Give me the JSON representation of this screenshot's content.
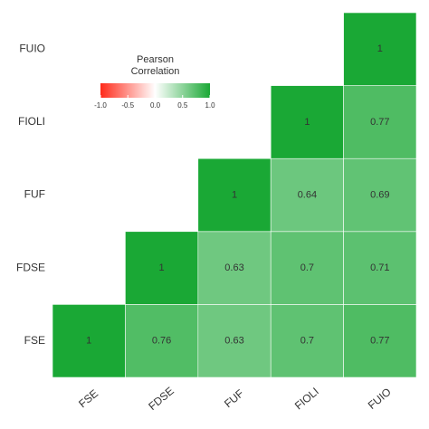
{
  "chart_data": {
    "type": "heatmap",
    "x_categories": [
      "FSE",
      "FDSE",
      "FUF",
      "FIOLI",
      "FUIO"
    ],
    "y_categories": [
      "FSE",
      "FDSE",
      "FUF",
      "FIOLI",
      "FUIO"
    ],
    "values": [
      [
        1,
        0.76,
        0.63,
        0.7,
        0.77
      ],
      [
        null,
        1,
        0.63,
        0.7,
        0.71
      ],
      [
        null,
        null,
        1,
        0.64,
        0.69
      ],
      [
        null,
        null,
        null,
        1,
        0.77
      ],
      [
        null,
        null,
        null,
        null,
        1
      ]
    ],
    "colorscale": {
      "low": "#ff2a1a",
      "mid": "#ffffff",
      "high": "#1aa835"
    },
    "legend_title": [
      "Pearson",
      "Correlation"
    ],
    "legend_lim": [
      -1,
      1
    ],
    "legend_ticks": [
      {
        "value": -1,
        "label": "-1.0"
      },
      {
        "value": -0.5,
        "label": "-0.5"
      },
      {
        "value": 0,
        "label": "0.0"
      },
      0.5,
      {
        "value": 1,
        "label": "1.0"
      }
    ]
  }
}
